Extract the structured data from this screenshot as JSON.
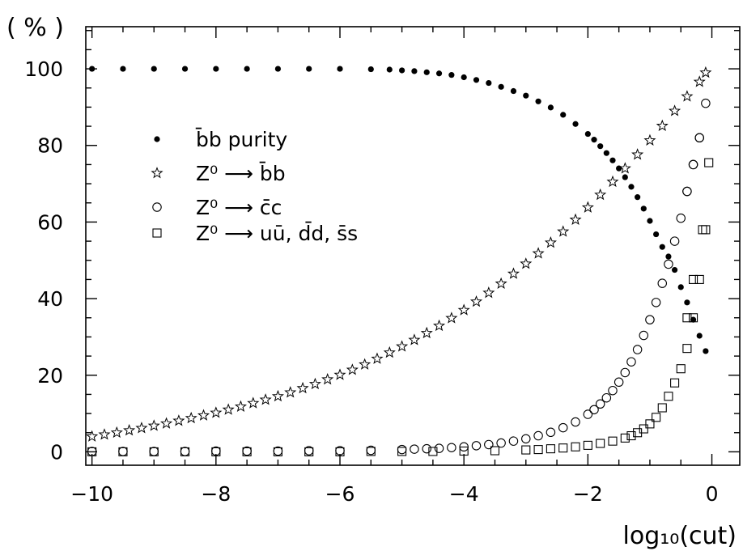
{
  "chart_data": {
    "type": "scatter",
    "title": "",
    "xlabel": "log₁₀(cut)",
    "ylabel": "( % )",
    "xlim": [
      -10.1,
      0.45
    ],
    "ylim": [
      -3.5,
      111
    ],
    "x_ticks": [
      -10,
      -8,
      -6,
      -4,
      -2,
      0
    ],
    "x_tick_labels": [
      "−10",
      "−8",
      "−6",
      "−4",
      "−2",
      "0"
    ],
    "y_ticks": [
      0,
      20,
      40,
      60,
      80,
      100
    ],
    "y_tick_labels": [
      "0",
      "20",
      "40",
      "60",
      "80",
      "100"
    ],
    "grid": false,
    "legend_position": "upper-left-inside",
    "series": [
      {
        "name": "b̄b purity",
        "marker": "filled-circle",
        "x": [
          -10,
          -9.5,
          -9,
          -8.5,
          -8,
          -7.5,
          -7,
          -6.5,
          -6,
          -5.5,
          -5.2,
          -5,
          -4.8,
          -4.6,
          -4.4,
          -4.2,
          -4,
          -3.8,
          -3.6,
          -3.4,
          -3.2,
          -3,
          -2.8,
          -2.6,
          -2.4,
          -2.2,
          -2,
          -1.9,
          -1.8,
          -1.7,
          -1.6,
          -1.5,
          -1.4,
          -1.3,
          -1.2,
          -1.1,
          -1,
          -0.9,
          -0.8,
          -0.7,
          -0.6,
          -0.5,
          -0.4,
          -0.3,
          -0.2,
          -0.1
        ],
        "y": [
          100,
          100,
          100,
          100,
          100,
          100,
          100,
          100,
          100,
          99.9,
          99.8,
          99.6,
          99.4,
          99.1,
          98.8,
          98.4,
          97.8,
          97.1,
          96.3,
          95.3,
          94.2,
          93,
          91.5,
          89.9,
          88,
          85.6,
          83,
          81.5,
          79.8,
          78,
          76.1,
          74,
          71.7,
          69.2,
          66.5,
          63.5,
          60.3,
          56.8,
          53.5,
          51,
          47.5,
          43,
          39,
          34.5,
          30.3,
          26.3
        ]
      },
      {
        "name": "Z⁰ ⟶ b̄b",
        "marker": "open-star",
        "x": [
          -10,
          -9.8,
          -9.6,
          -9.4,
          -9.2,
          -9,
          -8.8,
          -8.6,
          -8.4,
          -8.2,
          -8,
          -7.8,
          -7.6,
          -7.4,
          -7.2,
          -7,
          -6.8,
          -6.6,
          -6.4,
          -6.2,
          -6,
          -5.8,
          -5.6,
          -5.4,
          -5.2,
          -5,
          -4.8,
          -4.6,
          -4.4,
          -4.2,
          -4,
          -3.8,
          -3.6,
          -3.4,
          -3.2,
          -3,
          -2.8,
          -2.6,
          -2.4,
          -2.2,
          -2,
          -1.8,
          -1.6,
          -1.4,
          -1.2,
          -1,
          -0.8,
          -0.6,
          -0.4,
          -0.2,
          -0.1
        ],
        "y": [
          4,
          4.5,
          5,
          5.6,
          6.2,
          6.8,
          7.4,
          8.1,
          8.8,
          9.5,
          10.2,
          11,
          11.8,
          12.7,
          13.6,
          14.5,
          15.5,
          16.6,
          17.7,
          18.9,
          20.1,
          21.4,
          22.8,
          24.3,
          25.9,
          27.5,
          29.2,
          31,
          32.9,
          34.9,
          37,
          39.2,
          41.5,
          43.9,
          46.5,
          49.1,
          51.8,
          54.6,
          57.5,
          60.6,
          63.8,
          67.1,
          70.5,
          74,
          77.6,
          81.3,
          85.1,
          89,
          92.8,
          96.6,
          99
        ]
      },
      {
        "name": "Z⁰ ⟶ c̄c",
        "marker": "open-circle",
        "x": [
          -10,
          -9.5,
          -9,
          -8.5,
          -8,
          -7.5,
          -7,
          -6.5,
          -6,
          -5.5,
          -5,
          -4.8,
          -4.6,
          -4.4,
          -4.2,
          -4,
          -3.8,
          -3.6,
          -3.4,
          -3.2,
          -3,
          -2.8,
          -2.6,
          -2.4,
          -2.2,
          -2,
          -1.9,
          -1.8,
          -1.7,
          -1.6,
          -1.5,
          -1.4,
          -1.3,
          -1.2,
          -1.1,
          -1,
          -0.9,
          -0.8,
          -0.7,
          -0.6,
          -0.5,
          -0.4,
          -0.3,
          -0.2,
          -0.1
        ],
        "y": [
          0.1,
          0.1,
          0.1,
          0.1,
          0.2,
          0.2,
          0.2,
          0.3,
          0.3,
          0.4,
          0.6,
          0.7,
          0.8,
          0.9,
          1.1,
          1.3,
          1.6,
          1.9,
          2.3,
          2.8,
          3.4,
          4.2,
          5.1,
          6.3,
          7.8,
          9.8,
          11,
          12.5,
          14.1,
          16,
          18.2,
          20.7,
          23.5,
          26.7,
          30.4,
          34.5,
          39,
          44,
          49,
          55,
          61,
          68,
          75,
          82,
          91
        ]
      },
      {
        "name": "Z⁰ ⟶ uū, d̄d, s̄s",
        "marker": "open-square",
        "x": [
          -10,
          -9.5,
          -9,
          -8.5,
          -8,
          -7.5,
          -7,
          -6.5,
          -6,
          -5.5,
          -5,
          -4.5,
          -4,
          -3.5,
          -3,
          -2.8,
          -2.6,
          -2.4,
          -2.2,
          -2,
          -1.8,
          -1.6,
          -1.4,
          -1.3,
          -1.2,
          -1.1,
          -1,
          -0.9,
          -0.8,
          -0.7,
          -0.6,
          -0.5,
          -0.4,
          -0.3,
          -0.2,
          -0.1
        ],
        "y": [
          0,
          0,
          0,
          0,
          0,
          0,
          0,
          0,
          0,
          0.1,
          0.1,
          0.1,
          0.2,
          0.3,
          0.5,
          0.6,
          0.8,
          1,
          1.3,
          1.7,
          2.2,
          2.8,
          3.6,
          4.2,
          5,
          6,
          7.3,
          9,
          11.5,
          14.5,
          18,
          21.7,
          27,
          35,
          45,
          58
        ]
      }
    ],
    "extra_points": {
      "circle": [
        [
          -0.2,
          82
        ],
        [
          -0.3,
          75
        ],
        [
          -0.4,
          68
        ]
      ],
      "square": [
        [
          -0.05,
          75.5
        ],
        [
          -0.15,
          58
        ],
        [
          -0.3,
          45
        ],
        [
          -0.4,
          35
        ]
      ]
    }
  },
  "legend": [
    {
      "label": "b̄b purity",
      "marker": "filled-circle"
    },
    {
      "label": "Z⁰ ⟶ b̄b",
      "marker": "open-star"
    },
    {
      "label": "Z⁰ ⟶ c̄c",
      "marker": "open-circle"
    },
    {
      "label": "Z⁰ ⟶ uū, d̄d, s̄s",
      "marker": "open-square"
    }
  ]
}
